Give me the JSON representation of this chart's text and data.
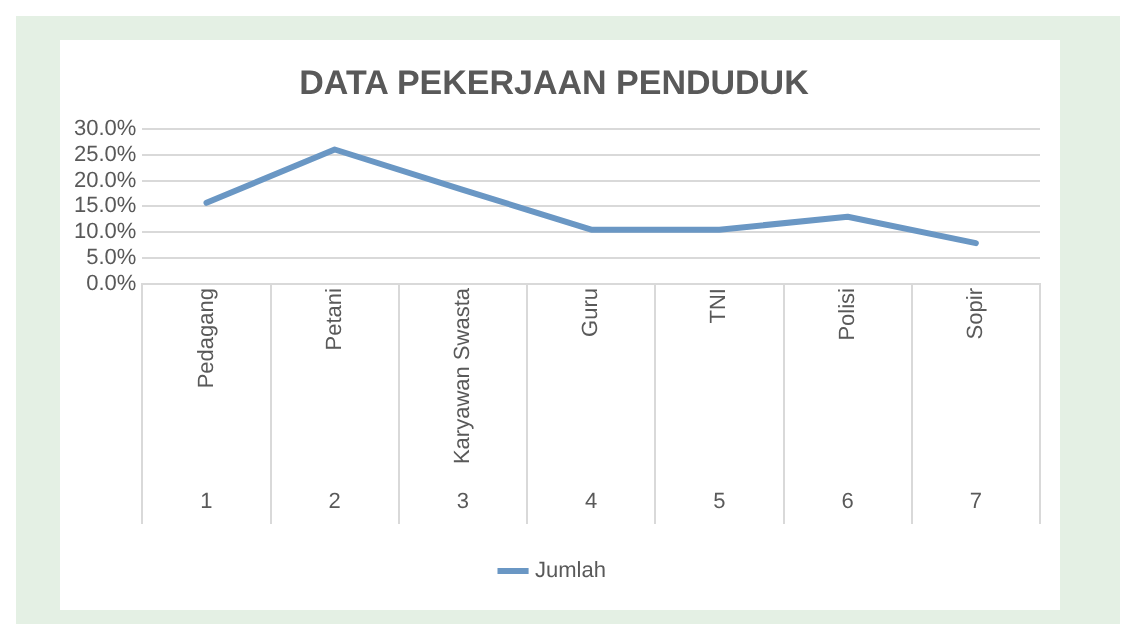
{
  "chart_data": {
    "type": "line",
    "title": "DATA PEKERJAAN PENDUDUK",
    "categories": [
      "Pedagang",
      "Petani",
      "Karyawan Swasta",
      "Guru",
      "TNI",
      "Polisi",
      "Sopir"
    ],
    "series": [
      {
        "name": "Jumlah",
        "color": "#6a97c4",
        "values": [
          15.7,
          26.0,
          18.2,
          10.5,
          10.5,
          13.0,
          7.9
        ]
      }
    ],
    "ylim": [
      0,
      30
    ],
    "yticks": [
      {
        "value": 0,
        "label": "0.0%"
      },
      {
        "value": 5,
        "label": "5.0%"
      },
      {
        "value": 10,
        "label": "10.0%"
      },
      {
        "value": 15,
        "label": "15.0%"
      },
      {
        "value": 20,
        "label": "20.0%"
      },
      {
        "value": 25,
        "label": "25.0%"
      },
      {
        "value": 30,
        "label": "30.0%"
      }
    ],
    "annotations": [
      "1",
      "2",
      "3",
      "4",
      "5",
      "6",
      "7"
    ],
    "grid": "y",
    "legend": "bottom",
    "marker": "none",
    "line_style": "solid"
  }
}
